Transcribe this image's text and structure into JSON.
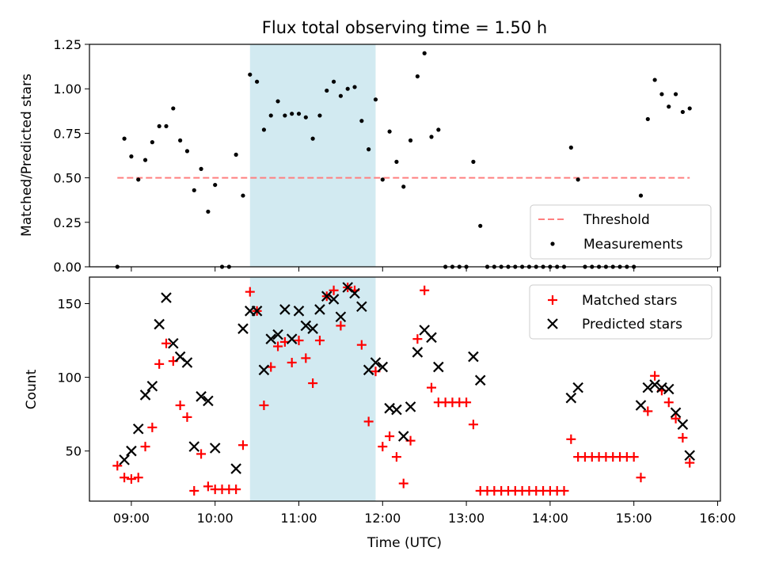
{
  "figure_title": "Flux total observing time = 1.50 h",
  "colors": {
    "background": "#ffffff",
    "shade": "#add8e6",
    "threshold": "#ff7f7f",
    "matched": "#ff0000",
    "predicted": "#000000",
    "measurement": "#000000"
  },
  "chart_data": [
    {
      "type": "scatter",
      "title": "Flux total observing time = 1.50 h",
      "xlabel": "",
      "ylabel": "Matched/Predicted stars",
      "xlim": [
        "08:30",
        "16:02"
      ],
      "ylim": [
        0,
        1.25
      ],
      "yticks": [
        "0.00",
        "0.25",
        "0.50",
        "0.75",
        "1.00",
        "1.25"
      ],
      "legend_position": "lower right",
      "shaded_span": [
        "10:25",
        "11:55"
      ],
      "series": [
        {
          "name": "Threshold",
          "kind": "dashed-line",
          "x": [
            "08:50",
            "15:40"
          ],
          "y": [
            0.5,
            0.5
          ]
        },
        {
          "name": "Measurements",
          "kind": "dots",
          "points": [
            [
              "08:50",
              0.0
            ],
            [
              "08:55",
              0.72
            ],
            [
              "09:00",
              0.62
            ],
            [
              "09:05",
              0.49
            ],
            [
              "09:10",
              0.6
            ],
            [
              "09:15",
              0.7
            ],
            [
              "09:20",
              0.79
            ],
            [
              "09:25",
              0.79
            ],
            [
              "09:30",
              0.89
            ],
            [
              "09:35",
              0.71
            ],
            [
              "09:40",
              0.65
            ],
            [
              "09:45",
              0.43
            ],
            [
              "09:50",
              0.55
            ],
            [
              "09:55",
              0.31
            ],
            [
              "10:00",
              0.46
            ],
            [
              "10:05",
              0.0
            ],
            [
              "10:10",
              0.0
            ],
            [
              "10:15",
              0.63
            ],
            [
              "10:20",
              0.4
            ],
            [
              "10:25",
              1.08
            ],
            [
              "10:30",
              1.04
            ],
            [
              "10:35",
              0.77
            ],
            [
              "10:40",
              0.85
            ],
            [
              "10:45",
              0.93
            ],
            [
              "10:50",
              0.85
            ],
            [
              "10:55",
              0.86
            ],
            [
              "11:00",
              0.86
            ],
            [
              "11:05",
              0.84
            ],
            [
              "11:10",
              0.72
            ],
            [
              "11:15",
              0.85
            ],
            [
              "11:20",
              0.99
            ],
            [
              "11:25",
              1.04
            ],
            [
              "11:30",
              0.96
            ],
            [
              "11:35",
              1.0
            ],
            [
              "11:40",
              1.01
            ],
            [
              "11:45",
              0.82
            ],
            [
              "11:50",
              0.66
            ],
            [
              "11:55",
              0.94
            ],
            [
              "12:00",
              0.49
            ],
            [
              "12:05",
              0.76
            ],
            [
              "12:10",
              0.59
            ],
            [
              "12:15",
              0.45
            ],
            [
              "12:20",
              0.71
            ],
            [
              "12:25",
              1.07
            ],
            [
              "12:30",
              1.2
            ],
            [
              "12:35",
              0.73
            ],
            [
              "12:40",
              0.77
            ],
            [
              "12:45",
              0.0
            ],
            [
              "12:50",
              0.0
            ],
            [
              "12:55",
              0.0
            ],
            [
              "13:00",
              0.0
            ],
            [
              "13:05",
              0.59
            ],
            [
              "13:10",
              0.23
            ],
            [
              "13:15",
              0.0
            ],
            [
              "13:20",
              0.0
            ],
            [
              "13:25",
              0.0
            ],
            [
              "13:30",
              0.0
            ],
            [
              "13:35",
              0.0
            ],
            [
              "13:40",
              0.0
            ],
            [
              "13:45",
              0.0
            ],
            [
              "13:50",
              0.0
            ],
            [
              "13:55",
              0.0
            ],
            [
              "14:00",
              0.0
            ],
            [
              "14:05",
              0.0
            ],
            [
              "14:10",
              0.0
            ],
            [
              "14:15",
              0.67
            ],
            [
              "14:20",
              0.49
            ],
            [
              "14:25",
              0.0
            ],
            [
              "14:30",
              0.0
            ],
            [
              "14:35",
              0.0
            ],
            [
              "14:40",
              0.0
            ],
            [
              "14:45",
              0.0
            ],
            [
              "14:50",
              0.0
            ],
            [
              "14:55",
              0.0
            ],
            [
              "15:00",
              0.0
            ],
            [
              "15:05",
              0.4
            ],
            [
              "15:10",
              0.83
            ],
            [
              "15:15",
              1.05
            ],
            [
              "15:20",
              0.97
            ],
            [
              "15:25",
              0.9
            ],
            [
              "15:30",
              0.97
            ],
            [
              "15:35",
              0.87
            ],
            [
              "15:40",
              0.89
            ]
          ]
        }
      ]
    },
    {
      "type": "scatter",
      "title": "",
      "xlabel": "Time (UTC)",
      "ylabel": "Count",
      "xlim": [
        "08:30",
        "16:02"
      ],
      "ylim": [
        16,
        168
      ],
      "yticks": [
        "50",
        "100",
        "150"
      ],
      "xticks": [
        "09:00",
        "10:00",
        "11:00",
        "12:00",
        "13:00",
        "14:00",
        "15:00",
        "16:00"
      ],
      "legend_position": "upper right",
      "shaded_span": [
        "10:25",
        "11:55"
      ],
      "series": [
        {
          "name": "Matched stars",
          "kind": "plus",
          "points": [
            [
              "08:50",
              40
            ],
            [
              "08:55",
              32
            ],
            [
              "09:00",
              31
            ],
            [
              "09:05",
              32
            ],
            [
              "09:10",
              53
            ],
            [
              "09:15",
              66
            ],
            [
              "09:20",
              109
            ],
            [
              "09:25",
              123
            ],
            [
              "09:30",
              111
            ],
            [
              "09:35",
              81
            ],
            [
              "09:40",
              73
            ],
            [
              "09:45",
              23
            ],
            [
              "09:50",
              48
            ],
            [
              "09:55",
              26
            ],
            [
              "10:00",
              24
            ],
            [
              "10:05",
              24
            ],
            [
              "10:10",
              24
            ],
            [
              "10:15",
              24
            ],
            [
              "10:20",
              54
            ],
            [
              "10:25",
              158
            ],
            [
              "10:30",
              145
            ],
            [
              "10:35",
              81
            ],
            [
              "10:40",
              107
            ],
            [
              "10:45",
              121
            ],
            [
              "10:50",
              124
            ],
            [
              "10:55",
              110
            ],
            [
              "11:00",
              125
            ],
            [
              "11:05",
              113
            ],
            [
              "11:10",
              96
            ],
            [
              "11:15",
              125
            ],
            [
              "11:20",
              155
            ],
            [
              "11:25",
              159
            ],
            [
              "11:30",
              135
            ],
            [
              "11:35",
              161
            ],
            [
              "11:40",
              159
            ],
            [
              "11:45",
              122
            ],
            [
              "11:50",
              70
            ],
            [
              "11:55",
              104
            ],
            [
              "12:00",
              53
            ],
            [
              "12:05",
              60
            ],
            [
              "12:10",
              46
            ],
            [
              "12:15",
              28
            ],
            [
              "12:20",
              57
            ],
            [
              "12:25",
              126
            ],
            [
              "12:30",
              159
            ],
            [
              "12:35",
              93
            ],
            [
              "12:40",
              83
            ],
            [
              "12:45",
              83
            ],
            [
              "12:50",
              83
            ],
            [
              "12:55",
              83
            ],
            [
              "13:00",
              83
            ],
            [
              "13:05",
              68
            ],
            [
              "13:10",
              23
            ],
            [
              "13:15",
              23
            ],
            [
              "13:20",
              23
            ],
            [
              "13:25",
              23
            ],
            [
              "13:30",
              23
            ],
            [
              "13:35",
              23
            ],
            [
              "13:40",
              23
            ],
            [
              "13:45",
              23
            ],
            [
              "13:50",
              23
            ],
            [
              "13:55",
              23
            ],
            [
              "14:00",
              23
            ],
            [
              "14:05",
              23
            ],
            [
              "14:10",
              23
            ],
            [
              "14:15",
              58
            ],
            [
              "14:20",
              46
            ],
            [
              "14:25",
              46
            ],
            [
              "14:30",
              46
            ],
            [
              "14:35",
              46
            ],
            [
              "14:40",
              46
            ],
            [
              "14:45",
              46
            ],
            [
              "14:50",
              46
            ],
            [
              "14:55",
              46
            ],
            [
              "15:00",
              46
            ],
            [
              "15:05",
              32
            ],
            [
              "15:10",
              77
            ],
            [
              "15:15",
              101
            ],
            [
              "15:20",
              91
            ],
            [
              "15:25",
              83
            ],
            [
              "15:30",
              72
            ],
            [
              "15:35",
              59
            ],
            [
              "15:40",
              42
            ]
          ]
        },
        {
          "name": "Predicted stars",
          "kind": "x",
          "points": [
            [
              "08:55",
              44
            ],
            [
              "09:00",
              50
            ],
            [
              "09:05",
              65
            ],
            [
              "09:10",
              88
            ],
            [
              "09:15",
              94
            ],
            [
              "09:20",
              136
            ],
            [
              "09:25",
              154
            ],
            [
              "09:30",
              123
            ],
            [
              "09:35",
              114
            ],
            [
              "09:40",
              110
            ],
            [
              "09:45",
              53
            ],
            [
              "09:50",
              87
            ],
            [
              "09:55",
              84
            ],
            [
              "10:00",
              52
            ],
            [
              "10:15",
              38
            ],
            [
              "10:20",
              133
            ],
            [
              "10:25",
              145
            ],
            [
              "10:30",
              145
            ],
            [
              "10:35",
              105
            ],
            [
              "10:40",
              126
            ],
            [
              "10:45",
              129
            ],
            [
              "10:50",
              146
            ],
            [
              "10:55",
              126
            ],
            [
              "11:00",
              145
            ],
            [
              "11:05",
              135
            ],
            [
              "11:10",
              133
            ],
            [
              "11:15",
              146
            ],
            [
              "11:20",
              155
            ],
            [
              "11:25",
              153
            ],
            [
              "11:30",
              141
            ],
            [
              "11:35",
              161
            ],
            [
              "11:40",
              157
            ],
            [
              "11:45",
              148
            ],
            [
              "11:50",
              105
            ],
            [
              "11:55",
              110
            ],
            [
              "12:00",
              107
            ],
            [
              "12:05",
              79
            ],
            [
              "12:10",
              78
            ],
            [
              "12:15",
              60
            ],
            [
              "12:20",
              80
            ],
            [
              "12:25",
              117
            ],
            [
              "12:30",
              132
            ],
            [
              "12:35",
              127
            ],
            [
              "12:40",
              107
            ],
            [
              "13:05",
              114
            ],
            [
              "13:10",
              98
            ],
            [
              "14:15",
              86
            ],
            [
              "14:20",
              93
            ],
            [
              "15:05",
              81
            ],
            [
              "15:10",
              93
            ],
            [
              "15:15",
              95
            ],
            [
              "15:20",
              93
            ],
            [
              "15:25",
              92
            ],
            [
              "15:30",
              76
            ],
            [
              "15:35",
              68
            ],
            [
              "15:40",
              47
            ]
          ]
        }
      ]
    }
  ]
}
